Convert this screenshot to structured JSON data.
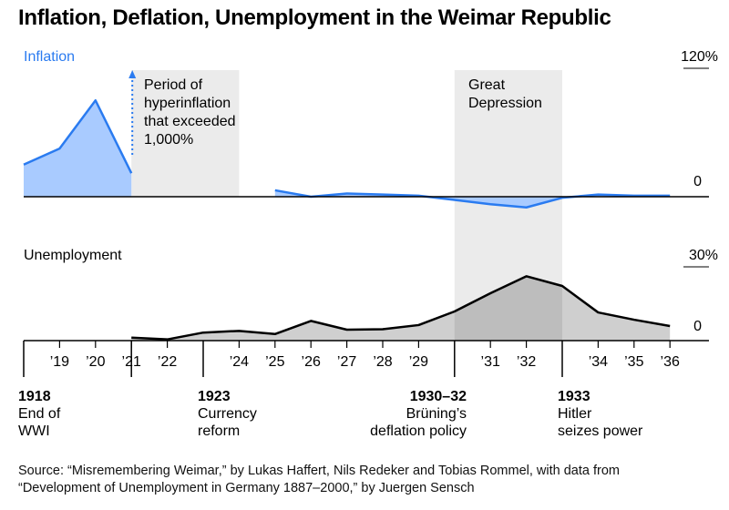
{
  "title": "Inflation, Deflation, Unemployment in the Weimar Republic",
  "source_lines": [
    "Source: “Misremembering Weimar,” by Lukas Haffert, Nils Redeker and Tobias Rommel, with data from",
    "“Development of Unemployment in Germany 1887–2000,” by Juergen Sensch"
  ],
  "colors": {
    "inflation_line": "#2a7bf0",
    "inflation_fill": "#a9cbff",
    "unemployment_line": "#000000",
    "unemployment_fill": "#cfcfcf",
    "shade": "#ebebeb",
    "shade_overlap": "#bdbdbd"
  },
  "chart_data": [
    {
      "type": "area",
      "name": "inflation-panel",
      "label": "Inflation",
      "y_ticks": [
        "120%",
        "0"
      ],
      "ylim": [
        -20,
        120
      ],
      "x_unit": "year",
      "series": [
        {
          "name": "Inflation",
          "points": [
            [
              1918,
              30
            ],
            [
              1919,
              45
            ],
            [
              1920,
              90
            ],
            [
              1921,
              22
            ]
          ]
        },
        {
          "name": "Inflation",
          "points": [
            [
              1925,
              6
            ],
            [
              1926,
              0
            ],
            [
              1927,
              3
            ],
            [
              1928,
              2
            ],
            [
              1929,
              1
            ],
            [
              1930,
              -3
            ],
            [
              1931,
              -7
            ],
            [
              1932,
              -10
            ],
            [
              1933,
              -1
            ],
            [
              1934,
              2
            ],
            [
              1935,
              1
            ],
            [
              1936,
              1
            ]
          ]
        }
      ]
    },
    {
      "type": "area",
      "name": "unemployment-panel",
      "label": "Unemployment",
      "y_ticks": [
        "30%",
        "0"
      ],
      "ylim": [
        0,
        30
      ],
      "x_unit": "year",
      "series": [
        {
          "name": "Unemployment",
          "points": [
            [
              1921,
              1.2
            ],
            [
              1922,
              0.5
            ],
            [
              1923,
              3.3
            ],
            [
              1924,
              4.0
            ],
            [
              1925,
              2.7
            ],
            [
              1926,
              8.1
            ],
            [
              1927,
              4.5
            ],
            [
              1928,
              4.7
            ],
            [
              1929,
              6.4
            ],
            [
              1930,
              12.0
            ],
            [
              1931,
              19.5
            ],
            [
              1932,
              26.5
            ],
            [
              1933,
              22.5
            ],
            [
              1934,
              11.6
            ],
            [
              1935,
              8.6
            ],
            [
              1936,
              6.0
            ]
          ]
        }
      ]
    }
  ],
  "x_ticks": [
    "’19",
    "’20",
    "’21",
    "’22",
    "’24",
    "’25",
    "’26",
    "’27",
    "’28",
    "’29",
    "’31",
    "’32",
    "’34",
    "’35",
    "’36"
  ],
  "x_tick_years": [
    1919,
    1920,
    1921,
    1922,
    1924,
    1925,
    1926,
    1927,
    1928,
    1929,
    1931,
    1932,
    1934,
    1935,
    1936
  ],
  "x_marker_years": [
    1918,
    1921,
    1923,
    1930,
    1933
  ],
  "shaded_periods": [
    {
      "start": 1921,
      "end": 1924,
      "label_lines": [
        "Period of",
        "hyperinflation",
        "that exceeded",
        "1,000%"
      ],
      "panel": "inflation"
    },
    {
      "start": 1930,
      "end": 1933,
      "label_lines": [
        "Great",
        "Depression"
      ],
      "panel": "both"
    }
  ],
  "events": [
    {
      "year": 1918,
      "year_label": "1918",
      "desc_lines": [
        "End of",
        "WWI"
      ]
    },
    {
      "year": 1923,
      "year_label": "1923",
      "desc_lines": [
        "Currency",
        "reform"
      ]
    },
    {
      "year": 1931,
      "year_label": "1930–32",
      "desc_lines": [
        "Brüning’s",
        "deflation policy"
      ]
    },
    {
      "year": 1933,
      "year_label": "1933",
      "desc_lines": [
        "Hitler",
        "seizes power"
      ]
    }
  ]
}
